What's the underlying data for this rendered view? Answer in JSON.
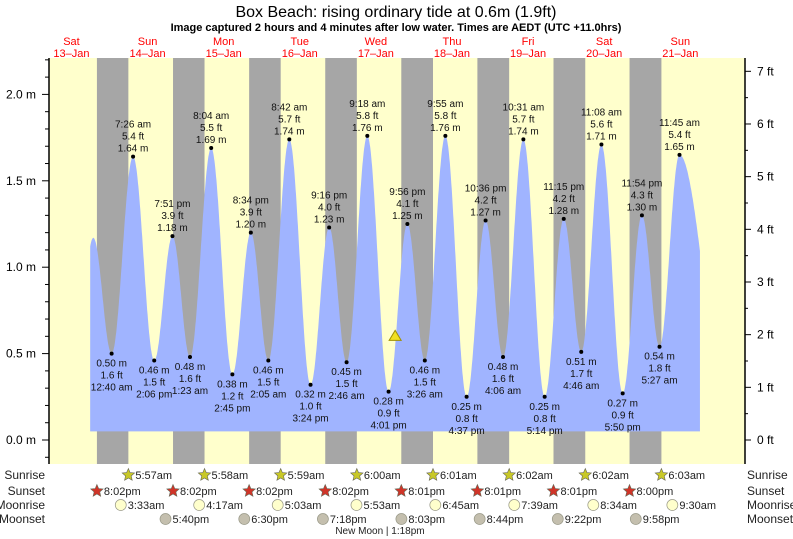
{
  "title": "Box Beach: rising  ordinary tide at 0.6m (1.9ft)",
  "subtitle": "Image captured 2 hours and 4 minutes after low water. Times are AEDT (UTC +11.0hrs)",
  "days": [
    {
      "dow": "Sat",
      "date": "13–Jan"
    },
    {
      "dow": "Sun",
      "date": "14–Jan"
    },
    {
      "dow": "Mon",
      "date": "15–Jan"
    },
    {
      "dow": "Tue",
      "date": "16–Jan"
    },
    {
      "dow": "Wed",
      "date": "17–Jan"
    },
    {
      "dow": "Thu",
      "date": "18–Jan"
    },
    {
      "dow": "Fri",
      "date": "19–Jan"
    },
    {
      "dow": "Sat",
      "date": "20–Jan"
    },
    {
      "dow": "Sun",
      "date": "21–Jan"
    }
  ],
  "colors": {
    "day": "#ffffcc",
    "night": "#a6a6a6",
    "water": "#a0b4ff",
    "day_label": "#ff0000",
    "sunrise": "#c8c828",
    "sunset": "#d03428",
    "moonrise": "#ffffcc",
    "moonset": "#c4bfae"
  },
  "chart_data": {
    "type": "area",
    "title": "Box Beach: rising  ordinary tide at 0.6m (1.9ft)",
    "ylabel_left": "m",
    "ylabel_right": "ft",
    "ylim_m": [
      -0.12,
      2.22
    ],
    "yticks_m": [
      "0.0 m",
      "0.5 m",
      "1.0 m",
      "1.5 m",
      "2.0 m"
    ],
    "yticks_ft": [
      "0 ft",
      "1 ft",
      "2 ft",
      "3 ft",
      "4 ft",
      "5 ft",
      "6 ft",
      "7 ft"
    ],
    "x_units": "hours since Sat 13-Jan 00:00",
    "curve_range_hours": [
      17.9,
      210.2
    ],
    "unlabeled_extremes": [
      {
        "h": 12.8,
        "m": 0.4
      },
      {
        "h": 18.9,
        "m": 1.17
      },
      {
        "h": 218.5,
        "m": 0.27
      }
    ],
    "extremes": [
      {
        "day": 1,
        "time": "12:40 am",
        "m": "0.50 m",
        "ft": "1.6 ft",
        "type": "low"
      },
      {
        "day": 1,
        "time": "7:26 am",
        "m": "1.64 m",
        "ft": "5.4 ft",
        "type": "high"
      },
      {
        "day": 1,
        "time": "2:06 pm",
        "m": "0.46 m",
        "ft": "1.5 ft",
        "type": "low"
      },
      {
        "day": 1,
        "time": "7:51 pm",
        "m": "1.18 m",
        "ft": "3.9 ft",
        "type": "high"
      },
      {
        "day": 2,
        "time": "1:23 am",
        "m": "0.48 m",
        "ft": "1.6 ft",
        "type": "low"
      },
      {
        "day": 2,
        "time": "8:04 am",
        "m": "1.69 m",
        "ft": "5.5 ft",
        "type": "high"
      },
      {
        "day": 2,
        "time": "2:45 pm",
        "m": "0.38 m",
        "ft": "1.2 ft",
        "type": "low"
      },
      {
        "day": 2,
        "time": "8:34 pm",
        "m": "1.20 m",
        "ft": "3.9 ft",
        "type": "high"
      },
      {
        "day": 3,
        "time": "2:05 am",
        "m": "0.46 m",
        "ft": "1.5 ft",
        "type": "low"
      },
      {
        "day": 3,
        "time": "8:42 am",
        "m": "1.74 m",
        "ft": "5.7 ft",
        "type": "high"
      },
      {
        "day": 3,
        "time": "3:24 pm",
        "m": "0.32 m",
        "ft": "1.0 ft",
        "type": "low"
      },
      {
        "day": 3,
        "time": "9:16 pm",
        "m": "1.23 m",
        "ft": "4.0 ft",
        "type": "high"
      },
      {
        "day": 4,
        "time": "2:46 am",
        "m": "0.45 m",
        "ft": "1.5 ft",
        "type": "low"
      },
      {
        "day": 4,
        "time": "9:18 am",
        "m": "1.76 m",
        "ft": "5.8 ft",
        "type": "high"
      },
      {
        "day": 4,
        "time": "4:01 pm",
        "m": "0.28 m",
        "ft": "0.9 ft",
        "type": "low"
      },
      {
        "day": 4,
        "time": "9:56 pm",
        "m": "1.25 m",
        "ft": "4.1 ft",
        "type": "high"
      },
      {
        "day": 5,
        "time": "3:26 am",
        "m": "0.46 m",
        "ft": "1.5 ft",
        "type": "low"
      },
      {
        "day": 5,
        "time": "9:55 am",
        "m": "1.76 m",
        "ft": "5.8 ft",
        "type": "high"
      },
      {
        "day": 5,
        "time": "4:37 pm",
        "m": "0.25 m",
        "ft": "0.8 ft",
        "type": "low"
      },
      {
        "day": 5,
        "time": "10:36 pm",
        "m": "1.27 m",
        "ft": "4.2 ft",
        "type": "high"
      },
      {
        "day": 6,
        "time": "4:06 am",
        "m": "0.48 m",
        "ft": "1.6 ft",
        "type": "low"
      },
      {
        "day": 6,
        "time": "10:31 am",
        "m": "1.74 m",
        "ft": "5.7 ft",
        "type": "high"
      },
      {
        "day": 6,
        "time": "5:14 pm",
        "m": "0.25 m",
        "ft": "0.8 ft",
        "type": "low"
      },
      {
        "day": 6,
        "time": "11:15 pm",
        "m": "1.28 m",
        "ft": "4.2 ft",
        "type": "high"
      },
      {
        "day": 7,
        "time": "4:46 am",
        "m": "0.51 m",
        "ft": "1.7 ft",
        "type": "low"
      },
      {
        "day": 7,
        "time": "11:08 am",
        "m": "1.71 m",
        "ft": "5.6 ft",
        "type": "high"
      },
      {
        "day": 7,
        "time": "5:50 pm",
        "m": "0.27 m",
        "ft": "0.9 ft",
        "type": "low"
      },
      {
        "day": 7,
        "time": "11:54 pm",
        "m": "1.30 m",
        "ft": "4.3 ft",
        "type": "high"
      },
      {
        "day": 8,
        "time": "5:27 am",
        "m": "0.54 m",
        "ft": "1.8 ft",
        "type": "low"
      },
      {
        "day": 8,
        "time": "11:45 am",
        "m": "1.65 m",
        "ft": "5.4 ft",
        "type": "high"
      }
    ],
    "current": {
      "day": 4,
      "time": "6:05 pm",
      "m": 0.6,
      "ft": 1.9
    }
  },
  "astro": {
    "labels": {
      "sunrise": "Sunrise",
      "sunset": "Sunset",
      "moonrise": "Moonrise",
      "moonset": "Moonset"
    },
    "sunrise": [
      {
        "day": 1,
        "time": "5:57am"
      },
      {
        "day": 2,
        "time": "5:58am"
      },
      {
        "day": 3,
        "time": "5:59am"
      },
      {
        "day": 4,
        "time": "6:00am"
      },
      {
        "day": 5,
        "time": "6:01am"
      },
      {
        "day": 6,
        "time": "6:02am"
      },
      {
        "day": 7,
        "time": "6:02am"
      },
      {
        "day": 8,
        "time": "6:03am"
      }
    ],
    "sunset": [
      {
        "day": 0,
        "time": "8:02pm"
      },
      {
        "day": 1,
        "time": "8:02pm"
      },
      {
        "day": 2,
        "time": "8:02pm"
      },
      {
        "day": 3,
        "time": "8:02pm"
      },
      {
        "day": 4,
        "time": "8:01pm"
      },
      {
        "day": 5,
        "time": "8:01pm"
      },
      {
        "day": 6,
        "time": "8:01pm"
      },
      {
        "day": 7,
        "time": "8:00pm"
      }
    ],
    "moonrise": [
      {
        "day": 1,
        "time": "3:33am"
      },
      {
        "day": 2,
        "time": "4:17am"
      },
      {
        "day": 3,
        "time": "5:03am"
      },
      {
        "day": 4,
        "time": "5:53am"
      },
      {
        "day": 5,
        "time": "6:45am"
      },
      {
        "day": 6,
        "time": "7:39am"
      },
      {
        "day": 7,
        "time": "8:34am"
      },
      {
        "day": 8,
        "time": "9:30am"
      }
    ],
    "moonset": [
      {
        "day": 1,
        "time": "5:40pm"
      },
      {
        "day": 2,
        "time": "6:30pm"
      },
      {
        "day": 3,
        "time": "7:18pm"
      },
      {
        "day": 4,
        "time": "8:03pm"
      },
      {
        "day": 5,
        "time": "8:44pm"
      },
      {
        "day": 6,
        "time": "9:22pm"
      },
      {
        "day": 7,
        "time": "9:58pm"
      }
    ],
    "moon_phase": {
      "day": 4,
      "time": "1:18pm",
      "label": "New Moon | 1:18pm"
    }
  }
}
